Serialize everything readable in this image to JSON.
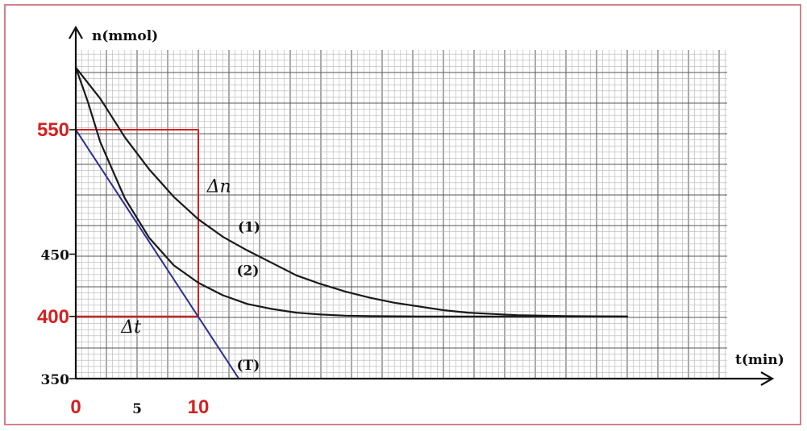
{
  "chart_data": {
    "type": "line",
    "ylabel": "n(mmol)",
    "xlabel": "t(min)",
    "xlim": [
      0,
      45
    ],
    "ylim": [
      350,
      600
    ],
    "x_ticks": [
      {
        "value": 0,
        "label": "0",
        "highlight": true
      },
      {
        "value": 5,
        "label": "5",
        "highlight": false
      },
      {
        "value": 10,
        "label": "10",
        "highlight": true
      }
    ],
    "y_ticks": [
      {
        "value": 350,
        "label": "350",
        "highlight": false
      },
      {
        "value": 400,
        "label": "400",
        "highlight": true
      },
      {
        "value": 450,
        "label": "450",
        "highlight": false
      },
      {
        "value": 550,
        "label": "550",
        "highlight": true
      }
    ],
    "series": [
      {
        "name": "(1)",
        "label_at": {
          "x": 12.7,
          "y": 472
        },
        "points": [
          [
            0,
            600
          ],
          [
            2,
            575
          ],
          [
            4,
            544
          ],
          [
            6,
            518
          ],
          [
            8,
            496
          ],
          [
            10,
            478
          ],
          [
            12,
            464
          ],
          [
            14,
            453
          ],
          [
            16,
            443
          ],
          [
            18,
            433
          ],
          [
            20,
            426
          ],
          [
            22,
            420
          ],
          [
            24,
            415
          ],
          [
            26,
            411
          ],
          [
            28,
            408
          ],
          [
            30,
            405
          ],
          [
            32,
            403
          ],
          [
            34,
            402
          ],
          [
            36,
            401
          ],
          [
            40,
            400.3
          ],
          [
            45,
            400
          ]
        ]
      },
      {
        "name": "(2)",
        "label_at": {
          "x": 12.6,
          "y": 437
        },
        "points": [
          [
            0,
            600
          ],
          [
            1,
            572
          ],
          [
            2,
            540
          ],
          [
            4,
            495
          ],
          [
            6,
            463
          ],
          [
            8,
            441
          ],
          [
            10,
            427
          ],
          [
            12,
            417
          ],
          [
            14,
            410
          ],
          [
            16,
            406
          ],
          [
            18,
            403
          ],
          [
            20,
            401.5
          ],
          [
            22,
            400.6
          ],
          [
            24,
            400.2
          ],
          [
            28,
            400
          ],
          [
            45,
            400
          ]
        ]
      },
      {
        "name": "(T)",
        "label_at": {
          "x": 12.6,
          "y": 361
        },
        "points": [
          [
            0,
            550
          ],
          [
            13.3,
            350
          ]
        ]
      }
    ],
    "annotations": [
      {
        "text": "Δn",
        "x": 10.7,
        "y": 500
      },
      {
        "text": "Δt",
        "x": 3.7,
        "y": 387
      }
    ],
    "construction_lines": {
      "color": "#d62020",
      "vertical_at_x": [
        0,
        10
      ],
      "horizontal_at_y": [
        550,
        400
      ],
      "note_color_tangent": "#2b2f8f"
    },
    "grid": true,
    "colors": {
      "axis": "#111111",
      "curve": "#1a1a1a",
      "tangent": "#2b2f8f",
      "highlight": "#d62020",
      "frame": "#d4808a"
    }
  }
}
